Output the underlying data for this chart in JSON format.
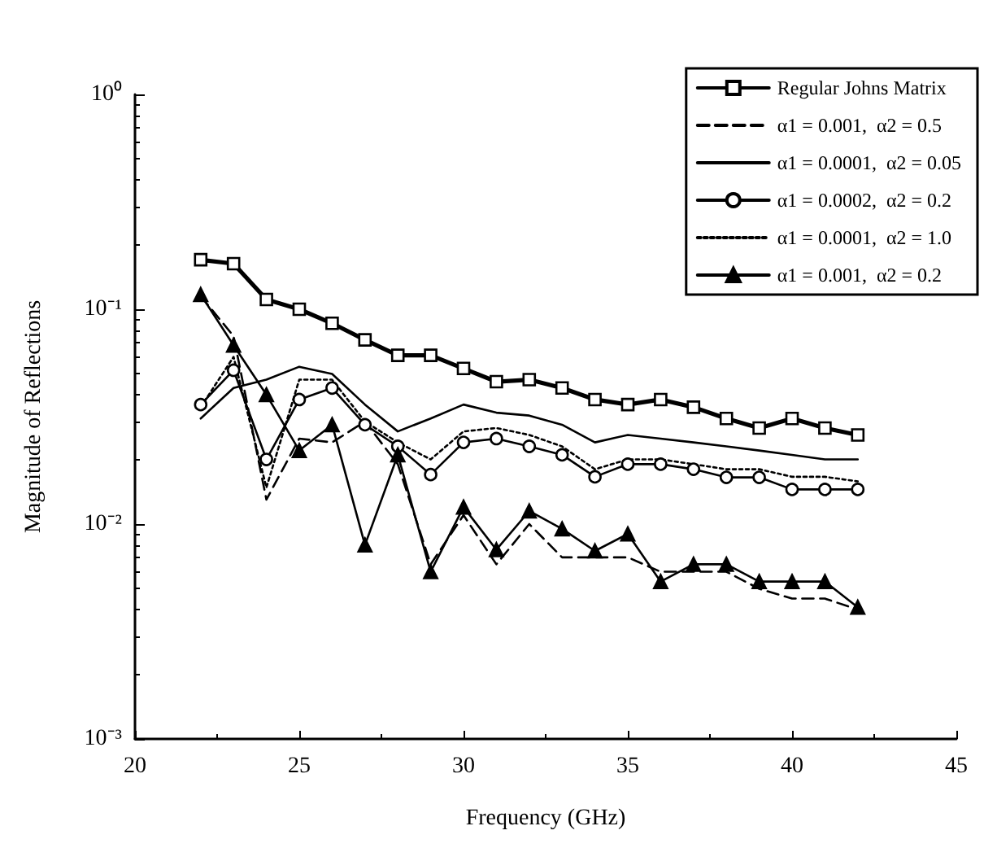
{
  "chart_data": {
    "type": "line",
    "xlabel": "Frequency (GHz)",
    "ylabel": "Magnitude of Reflections",
    "x": [
      22,
      23,
      24,
      25,
      26,
      27,
      28,
      29,
      30,
      31,
      32,
      33,
      34,
      35,
      36,
      37,
      38,
      39,
      40,
      41,
      42
    ],
    "series": [
      {
        "name": "Regular Johns Matrix",
        "color": "#000000",
        "marker": "square",
        "line_style": "solid",
        "values": [
          0.17,
          0.163,
          0.111,
          0.1,
          0.086,
          0.072,
          0.061,
          0.061,
          0.053,
          0.046,
          0.047,
          0.043,
          0.038,
          0.036,
          0.038,
          0.035,
          0.031,
          0.028,
          0.031,
          0.028,
          0.026
        ]
      },
      {
        "name": "α1 = 0.001,  α2 = 0.5",
        "color": "#000000",
        "marker": "none",
        "line_style": "dashed",
        "values": [
          0.115,
          0.075,
          0.013,
          0.025,
          0.024,
          0.03,
          0.019,
          0.0065,
          0.011,
          0.0065,
          0.01,
          0.007,
          0.007,
          0.007,
          0.006,
          0.006,
          0.006,
          0.005,
          0.0045,
          0.0045,
          0.004
        ]
      },
      {
        "name": "α1 = 0.0001,  α2 = 0.05",
        "color": "#000000",
        "marker": "none",
        "line_style": "solid",
        "values": [
          0.031,
          0.043,
          0.047,
          0.054,
          0.05,
          0.036,
          0.027,
          0.031,
          0.036,
          0.033,
          0.032,
          0.029,
          0.024,
          0.026,
          0.025,
          0.024,
          0.023,
          0.022,
          0.021,
          0.02,
          0.02
        ]
      },
      {
        "name": "α1 = 0.0002,  α2 = 0.2",
        "color": "#000000",
        "marker": "circle",
        "line_style": "solid",
        "values": [
          0.036,
          0.052,
          0.02,
          0.038,
          0.043,
          0.029,
          0.023,
          0.017,
          0.024,
          0.025,
          0.023,
          0.021,
          0.0166,
          0.019,
          0.019,
          0.018,
          0.0165,
          0.0165,
          0.0145,
          0.0145,
          0.0145
        ]
      },
      {
        "name": "α1 = 0.0001,  α2 = 1.0",
        "color": "#000000",
        "marker": "none",
        "line_style": "dotted",
        "values": [
          0.035,
          0.06,
          0.0148,
          0.047,
          0.047,
          0.03,
          0.024,
          0.02,
          0.027,
          0.028,
          0.026,
          0.023,
          0.018,
          0.02,
          0.02,
          0.019,
          0.018,
          0.018,
          0.0166,
          0.0166,
          0.0158
        ]
      },
      {
        "name": "α1 = 0.001,  α2 = 0.2",
        "color": "#000000",
        "marker": "triangle",
        "line_style": "solid",
        "values": [
          0.117,
          0.068,
          0.04,
          0.022,
          0.029,
          0.008,
          0.021,
          0.006,
          0.012,
          0.0076,
          0.0115,
          0.0095,
          0.0075,
          0.009,
          0.0054,
          0.0065,
          0.0065,
          0.0054,
          0.0054,
          0.0054,
          0.0041
        ]
      }
    ],
    "xlim": [
      20,
      45
    ],
    "xticks": [
      20,
      25,
      30,
      35,
      40,
      45
    ],
    "ylim": [
      0.001,
      1
    ],
    "log": "y",
    "yticks": [
      {
        "value": 0.001,
        "label": "10⁻³"
      },
      {
        "value": 0.01,
        "label": "10⁻²"
      },
      {
        "value": 0.1,
        "label": "10⁻¹"
      },
      {
        "value": 1,
        "label": "10⁰"
      }
    ],
    "grid": false,
    "legend": "top right"
  }
}
